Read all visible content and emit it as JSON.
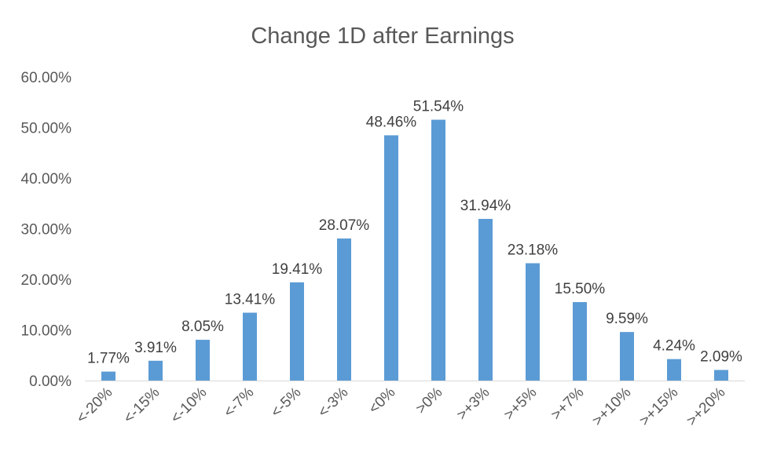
{
  "chart_data": {
    "type": "bar",
    "title": "Change 1D after Earnings",
    "xlabel": "",
    "ylabel": "",
    "categories": [
      "<-20%",
      "<-15%",
      "<-10%",
      "<-7%",
      "<-5%",
      "<-3%",
      "<0%",
      ">0%",
      ">+3%",
      ">+5%",
      ">+7%",
      ">+10%",
      ">+15%",
      ">+20%"
    ],
    "values": [
      1.77,
      3.91,
      8.05,
      13.41,
      19.41,
      28.07,
      48.46,
      51.54,
      31.94,
      23.18,
      15.5,
      9.59,
      4.24,
      2.09
    ],
    "data_labels": [
      "1.77%",
      "3.91%",
      "8.05%",
      "13.41%",
      "19.41%",
      "28.07%",
      "48.46%",
      "51.54%",
      "31.94%",
      "23.18%",
      "15.50%",
      "9.59%",
      "4.24%",
      "2.09%"
    ],
    "yticks": [
      "0.00%",
      "10.00%",
      "20.00%",
      "30.00%",
      "40.00%",
      "50.00%",
      "60.00%"
    ],
    "ylim": [
      0,
      60
    ],
    "grid": false,
    "legend": "none",
    "bar_color": "#5b9bd5"
  }
}
